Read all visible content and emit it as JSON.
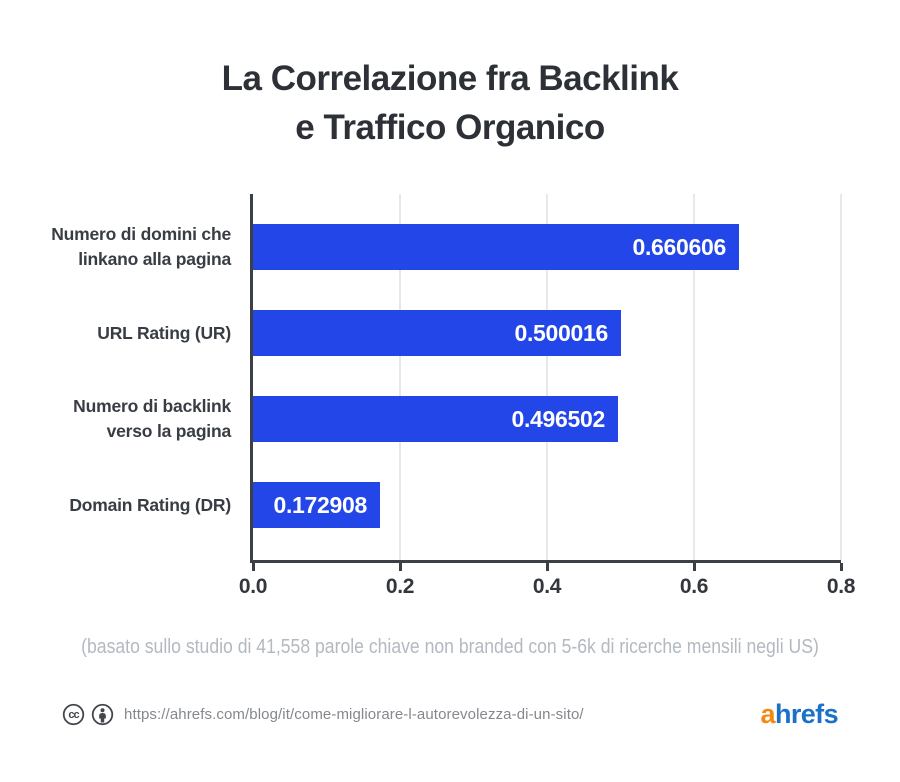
{
  "title": {
    "line1": "La Correlazione fra Backlink",
    "line2": "e Traffico Organico"
  },
  "chart_data": {
    "type": "bar",
    "orientation": "horizontal",
    "title": "La Correlazione fra Backlink e Traffico Organico",
    "categories": [
      "Numero di domini che linkano alla pagina",
      "URL Rating (UR)",
      "Numero di backlink verso la pagina",
      "Domain Rating (DR)"
    ],
    "category_lines": [
      [
        "Numero di domini che",
        "linkano alla pagina"
      ],
      [
        "URL Rating (UR)"
      ],
      [
        "Numero di backlink",
        "verso la pagina"
      ],
      [
        "Domain Rating (DR)"
      ]
    ],
    "values": [
      0.660606,
      0.500016,
      0.496502,
      0.172908
    ],
    "value_labels": [
      "0.660606",
      "0.500016",
      "0.496502",
      "0.172908"
    ],
    "xlabel": "",
    "ylabel": "",
    "xlim": [
      0,
      0.8
    ],
    "xticks": [
      0,
      0.2,
      0.4,
      0.6,
      0.8
    ],
    "xtick_labels": [
      "0.0",
      "0.2",
      "0.4",
      "0.6",
      "0.8"
    ],
    "grid": "vertical",
    "legend": "none",
    "bar_color": "#2346e8",
    "value_label_color": "#ffffff",
    "axis_color": "#3b3f46",
    "gridline_color": "#e6e8eb"
  },
  "footnote": "(basato sullo studio di 41,558 parole chiave non branded con 5-6k di ricerche mensili negli US)",
  "footer": {
    "license_icons": [
      "cc-icon",
      "attribution-icon"
    ],
    "icon_color": "#43474d",
    "url": "https://ahrefs.com/blog/it/come-migliorare-l-autorevolezza-di-un-sito/",
    "logo_text": "ahrefs",
    "logo_accent_letter": "a",
    "logo_rest": "hrefs",
    "logo_accent_color": "#f8870f",
    "logo_rest_color": "#1b70c8"
  }
}
